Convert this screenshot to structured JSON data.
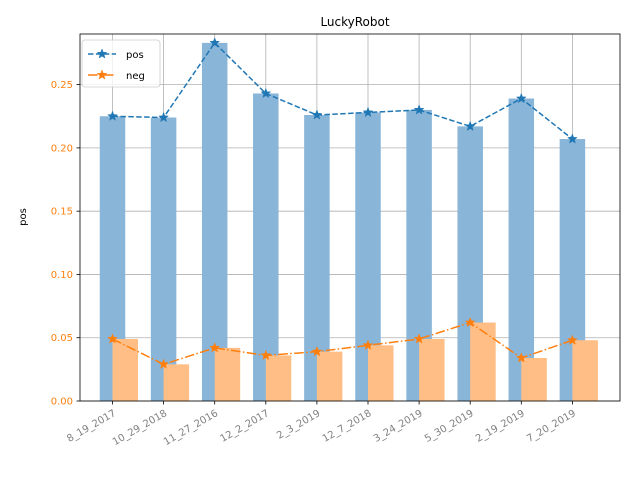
{
  "chart_data": {
    "type": "bar",
    "title": "LuckyRobot",
    "xlabel": "",
    "ylabel": "pos",
    "categories": [
      "8_19_2017",
      "10_29_2018",
      "11_27_2016",
      "12_2_2017",
      "2_3_2019",
      "12_7_2018",
      "3_24_2019",
      "5_30_2019",
      "2_19_2019",
      "7_20_2019"
    ],
    "series": [
      {
        "name": "pos",
        "values": [
          0.225,
          0.224,
          0.283,
          0.243,
          0.226,
          0.228,
          0.23,
          0.217,
          0.239,
          0.207
        ],
        "style": "dashed line with star markers over bars",
        "color": "#1f77b4",
        "bar_color": "#89b5d8"
      },
      {
        "name": "neg",
        "values": [
          0.049,
          0.029,
          0.042,
          0.036,
          0.039,
          0.044,
          0.049,
          0.062,
          0.034,
          0.048
        ],
        "style": "dash-dot line with star markers over bars",
        "color": "#ff7f0e",
        "bar_color": "#ffbe85"
      }
    ],
    "ylim": [
      0,
      0.29
    ],
    "yticks": [
      "0.00",
      "0.05",
      "0.10",
      "0.15",
      "0.20",
      "0.25"
    ],
    "ytick_values": [
      0,
      0.05,
      0.1,
      0.15,
      0.2,
      0.25
    ],
    "ytick_color": "#ff7f0e",
    "xtick_color": "#808080",
    "xtick_rotation": 30,
    "grid": true,
    "legend_position": "top-left"
  }
}
